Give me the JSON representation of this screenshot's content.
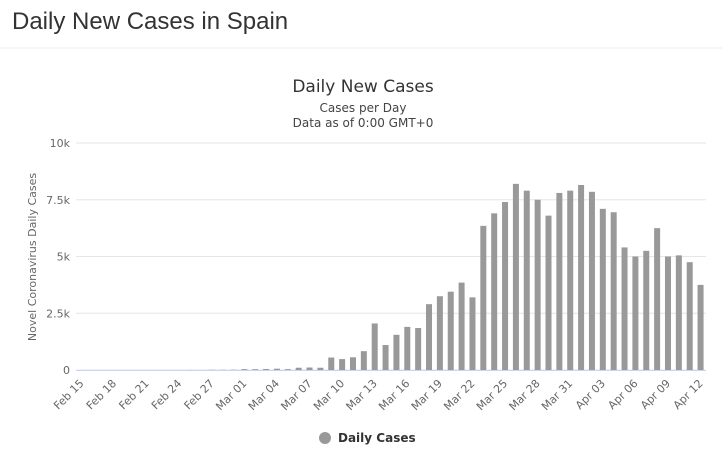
{
  "page_title": "Daily New Cases in Spain",
  "chart_data": {
    "type": "bar",
    "title": "Daily New Cases",
    "subtitle": [
      "Cases per Day",
      "Data as of 0:00 GMT+0"
    ],
    "y_label": "Novel Coronavirus Daily Cases",
    "categories": [
      "Feb 15",
      null,
      null,
      "Feb 18",
      null,
      null,
      "Feb 21",
      null,
      null,
      "Feb 24",
      null,
      null,
      "Feb 27",
      null,
      null,
      "Mar 01",
      null,
      null,
      "Mar 04",
      null,
      null,
      "Mar 07",
      null,
      null,
      "Mar 10",
      null,
      null,
      "Mar 13",
      null,
      null,
      "Mar 16",
      null,
      null,
      "Mar 19",
      null,
      null,
      "Mar 22",
      null,
      null,
      "Mar 25",
      null,
      null,
      "Mar 28",
      null,
      null,
      "Mar 31",
      null,
      null,
      "Apr 03",
      null,
      null,
      "Apr 06",
      null,
      null,
      "Apr 09",
      null,
      null,
      "Apr 12"
    ],
    "series": [
      {
        "name": "Daily Cases",
        "color": "#999999",
        "values": [
          0,
          0,
          0,
          0,
          0,
          0,
          0,
          0,
          0,
          0,
          4,
          1,
          10,
          8,
          13,
          39,
          36,
          45,
          57,
          37,
          100,
          110,
          100,
          550,
          480,
          560,
          830,
          2050,
          1100,
          1550,
          1900,
          1850,
          2900,
          3250,
          3450,
          3850,
          3200,
          6350,
          6900,
          7400,
          8200,
          7900,
          7500,
          6800,
          7800,
          7900,
          8150,
          7850,
          7100,
          6950,
          5400,
          5000,
          5250,
          6250,
          5000,
          5050,
          4750,
          3750
        ]
      }
    ],
    "ylim": [
      0,
      10000
    ],
    "yticks": [
      0,
      {
        "value": 2500,
        "label": "2.5k"
      },
      {
        "value": 5000,
        "label": "5k"
      },
      {
        "value": 7500,
        "label": "7.5k"
      },
      {
        "value": 10000,
        "label": "10k"
      }
    ],
    "grid": true
  }
}
